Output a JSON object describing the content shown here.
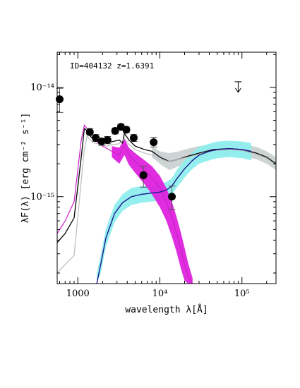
{
  "chart_data": {
    "type": "scatter",
    "annotation": "ID=404132 z=1.6391",
    "xlabel": "wavelength λ[Å]",
    "ylabel": "λF(λ) [erg cm⁻² s⁻¹]",
    "x_scale": "log",
    "y_scale": "log",
    "xlim": [
      560,
      260000
    ],
    "ylim": [
      1.6e-16,
      2.1e-14
    ],
    "x_tick_labels": [
      {
        "value": 1000,
        "label": "1000"
      },
      {
        "value": 10000,
        "label": "10⁴"
      },
      {
        "value": 100000,
        "label": "10⁵"
      }
    ],
    "y_tick_labels": [
      {
        "value": 1e-14,
        "label": "10⁻¹⁴"
      },
      {
        "value": 1e-15,
        "label": "10⁻¹⁵"
      }
    ],
    "observed_points": [
      {
        "x": 600,
        "y": 7.8e-15,
        "err_lo": 5.9e-15,
        "err_hi": 9.8e-15
      },
      {
        "x": 1400,
        "y": 3.9e-15,
        "err_lo": 3.7e-15,
        "err_hi": 4.2e-15
      },
      {
        "x": 1650,
        "y": 3.45e-15,
        "err_lo": 3.2e-15,
        "err_hi": 3.7e-15
      },
      {
        "x": 1950,
        "y": 3.2e-15,
        "err_lo": 2.95e-15,
        "err_hi": 3.4e-15
      },
      {
        "x": 2300,
        "y": 3.3e-15,
        "err_lo": 3.05e-15,
        "err_hi": 3.55e-15
      },
      {
        "x": 2850,
        "y": 4e-15,
        "err_lo": 3.75e-15,
        "err_hi": 4.25e-15
      },
      {
        "x": 3350,
        "y": 4.35e-15,
        "err_lo": 4.1e-15,
        "err_hi": 4.6e-15
      },
      {
        "x": 3900,
        "y": 4.1e-15,
        "err_lo": 3.85e-15,
        "err_hi": 4.35e-15
      },
      {
        "x": 4800,
        "y": 3.45e-15,
        "err_lo": 3.2e-15,
        "err_hi": 3.7e-15
      },
      {
        "x": 6300,
        "y": 1.57e-15,
        "err_lo": 1.22e-15,
        "err_hi": 1.9e-15
      },
      {
        "x": 8400,
        "y": 3.15e-15,
        "err_lo": 2.85e-15,
        "err_hi": 3.5e-15
      },
      {
        "x": 14000,
        "y": 1e-15,
        "err_lo": 7.6e-16,
        "err_hi": 1.25e-15
      }
    ],
    "upper_limits": [
      {
        "x": 90000,
        "y": 1.03e-14
      }
    ],
    "series": [
      {
        "color": "#111111",
        "x": [
          560,
          700,
          900,
          1100,
          1200,
          1300,
          1400,
          1600,
          1900,
          2200,
          2700,
          3200,
          3500,
          3700,
          4200,
          5000,
          6500,
          8000,
          10000,
          13000,
          17000,
          22000,
          30000,
          45000,
          70000,
          100000,
          150000,
          200000,
          260000
        ],
        "y": [
          3.8e-16,
          4.6e-16,
          6.4e-16,
          2.3e-15,
          4.2e-15,
          4e-15,
          3.6e-15,
          3.3e-15,
          3.2e-15,
          3.1e-15,
          3.2e-15,
          3.3e-15,
          3.1e-15,
          3.8e-15,
          3.3e-15,
          2.9e-15,
          2.7e-15,
          2.6e-15,
          2.3e-15,
          2.1e-15,
          2.2e-15,
          2.35e-15,
          2.5e-15,
          2.7e-15,
          2.75e-15,
          2.7e-15,
          2.5e-15,
          2.3e-15,
          2e-15
        ]
      },
      {
        "color": "#bbbbbb",
        "x": [
          560,
          700,
          900,
          1100,
          1200,
          1300,
          1400,
          1600,
          1900,
          2200,
          2700,
          3200,
          3700,
          4200,
          5000,
          6500,
          8000,
          10000,
          13000,
          17000,
          22000,
          30000,
          45000,
          70000,
          100000,
          150000,
          200000,
          260000
        ],
        "y": [
          2e-16,
          2.4e-16,
          2.9e-16,
          1.4e-15,
          2.7e-15,
          3.6e-15,
          3.3e-15,
          3.1e-15,
          3e-15,
          2.9e-15,
          3e-15,
          3.05e-15,
          3.4e-15,
          3e-15,
          2.7e-15,
          2.5e-15,
          2.4e-15,
          2.2e-15,
          2.1e-15,
          2.2e-15,
          2.3e-15,
          2.45e-15,
          2.65e-15,
          2.7e-15,
          2.65e-15,
          2.45e-15,
          2.25e-15,
          1.95e-15
        ]
      },
      {
        "color": "#cc22cc",
        "x": [
          560,
          700,
          900,
          1100,
          1200,
          1300,
          1400,
          1600,
          2000,
          2600,
          3200,
          3700,
          4200,
          5000,
          6500,
          8000,
          10000,
          12000,
          14000,
          16000,
          18000,
          20000,
          22000,
          25000
        ],
        "y": [
          4.6e-16,
          6e-16,
          9e-16,
          3.3e-15,
          4.5e-15,
          4.2e-15,
          3.9e-15,
          3.3e-15,
          2.9e-15,
          2.6e-15,
          2.4e-15,
          3e-15,
          2.4e-15,
          2.1e-15,
          1.75e-15,
          1.5e-15,
          1.2e-15,
          9e-16,
          6.5e-16,
          4.6e-16,
          3.3e-16,
          2.4e-16,
          1.9e-16,
          1.6e-16
        ]
      },
      {
        "color": "#1c1c8f",
        "x": [
          1700,
          1900,
          2200,
          2800,
          3500,
          4500,
          6000,
          8000,
          10000,
          12000,
          14000,
          16000,
          20000,
          25000,
          30000,
          40000,
          50000,
          70000,
          100000,
          130000
        ],
        "y": [
          1.6e-16,
          2.4e-16,
          4.2e-16,
          7e-16,
          8.8e-16,
          1e-15,
          1.05e-15,
          1.08e-15,
          1.1e-15,
          1.15e-15,
          1.25e-15,
          1.45e-15,
          1.8e-15,
          2.15e-15,
          2.4e-15,
          2.6e-15,
          2.7e-15,
          2.75e-15,
          2.7e-15,
          2.6e-15
        ]
      }
    ],
    "bands": [
      {
        "fill": "#c9d2d2",
        "x": [
          8000,
          10000,
          13000,
          17000,
          22000,
          30000,
          45000,
          70000,
          100000,
          150000,
          200000,
          260000
        ],
        "lo": [
          2.3e-15,
          2e-15,
          1.75e-15,
          1.9e-15,
          2.05e-15,
          2.2e-15,
          2.35e-15,
          2.4e-15,
          2.35e-15,
          2.2e-15,
          2e-15,
          1.75e-15
        ],
        "hi": [
          2.9e-15,
          2.6e-15,
          2.5e-15,
          2.6e-15,
          2.75e-15,
          2.9e-15,
          3.05e-15,
          3.1e-15,
          3.05e-15,
          2.85e-15,
          2.6e-15,
          2.3e-15
        ]
      },
      {
        "fill": "#8feeee",
        "x": [
          1700,
          1900,
          2200,
          2800,
          3500,
          4500,
          6000,
          8000,
          10000,
          12000,
          14000,
          16000,
          20000,
          25000,
          30000,
          40000,
          50000,
          70000,
          100000,
          130000
        ],
        "lo": [
          1.6e-16,
          2e-16,
          3.5e-16,
          5.8e-16,
          7.4e-16,
          8.4e-16,
          8.8e-16,
          9e-16,
          9.2e-16,
          9.6e-16,
          1.05e-15,
          1.2e-15,
          1.5e-15,
          1.8e-15,
          2e-15,
          2.15e-15,
          2.25e-15,
          2.3e-15,
          2.25e-15,
          2.15e-15
        ],
        "hi": [
          2e-16,
          2.9e-16,
          5.1e-16,
          8.4e-16,
          1.05e-15,
          1.2e-15,
          1.25e-15,
          1.28e-15,
          1.3e-15,
          1.36e-15,
          1.48e-15,
          1.75e-15,
          2.15e-15,
          2.55e-15,
          2.85e-15,
          3.05e-15,
          3.2e-15,
          3.25e-15,
          3.2e-15,
          3.1e-15
        ]
      },
      {
        "fill": "#dd22dd",
        "x": [
          2600,
          3200,
          3700,
          4200,
          5000,
          6500,
          8000,
          10000,
          12000,
          14000,
          16000,
          18000,
          20000,
          22000,
          25000
        ],
        "lo": [
          2.3e-15,
          2e-15,
          2.4e-15,
          1.95e-15,
          1.65e-15,
          1.3e-15,
          1.05e-15,
          8e-16,
          6e-16,
          4.3e-16,
          3.1e-16,
          2.2e-16,
          1.7e-16,
          1.6e-16,
          1.6e-16
        ],
        "hi": [
          2.9e-15,
          2.8e-15,
          3.4e-15,
          2.8e-15,
          2.5e-15,
          2.15e-15,
          1.9e-15,
          1.55e-15,
          1.2e-15,
          9e-16,
          6.5e-16,
          4.7e-16,
          3.4e-16,
          2.5e-16,
          1.8e-16
        ]
      }
    ]
  }
}
